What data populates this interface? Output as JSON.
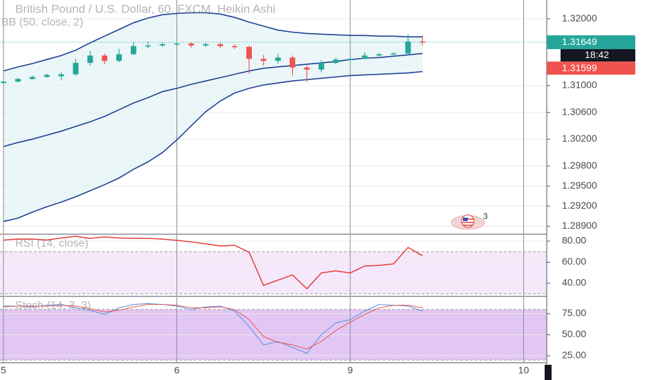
{
  "chart_data": [
    {
      "type": "candlestick",
      "title": "British Pound / U.S. Dollar, 60, FXCM, Heikin Ashi",
      "subtitle": "BB (50, close, 2)",
      "x": [
        0,
        2,
        4,
        6,
        8,
        10,
        12,
        14,
        16,
        18,
        20,
        22,
        24,
        26,
        28,
        30,
        32,
        34,
        36,
        38,
        40,
        42,
        44,
        46,
        48,
        50,
        52,
        54,
        56,
        58
      ],
      "open": [
        1.3104,
        1.3106,
        1.311,
        1.3113,
        1.3114,
        1.3117,
        1.3134,
        1.3145,
        1.3137,
        1.3147,
        1.3159,
        1.316,
        1.3162,
        1.3163,
        1.316,
        1.3162,
        1.3159,
        1.3158,
        1.314,
        1.3137,
        1.3142,
        1.3127,
        1.3124,
        1.3134,
        1.3139,
        1.314,
        1.3145,
        1.3147,
        1.3148,
        1.3166
      ],
      "high": [
        1.3108,
        1.3112,
        1.3115,
        1.3118,
        1.312,
        1.314,
        1.3152,
        1.3148,
        1.3155,
        1.3165,
        1.3166,
        1.3165,
        1.3165,
        1.3165,
        1.3164,
        1.3164,
        1.3162,
        1.316,
        1.3146,
        1.3148,
        1.3145,
        1.313,
        1.3138,
        1.3142,
        1.3142,
        1.315,
        1.3149,
        1.315,
        1.3177,
        1.3175
      ],
      "low": [
        1.3102,
        1.3105,
        1.3109,
        1.3112,
        1.3108,
        1.3115,
        1.313,
        1.3132,
        1.3135,
        1.3146,
        1.3156,
        1.3158,
        1.316,
        1.3157,
        1.3158,
        1.3156,
        1.3155,
        1.3118,
        1.313,
        1.3133,
        1.3115,
        1.3105,
        1.312,
        1.3132,
        1.3136,
        1.3139,
        1.3144,
        1.3146,
        1.3146,
        1.316
      ],
      "close": [
        1.3106,
        1.311,
        1.3113,
        1.3116,
        1.3117,
        1.3134,
        1.3145,
        1.3137,
        1.3147,
        1.3159,
        1.316,
        1.3162,
        1.3163,
        1.316,
        1.3162,
        1.3159,
        1.3158,
        1.314,
        1.3137,
        1.3142,
        1.3127,
        1.3124,
        1.3134,
        1.3139,
        1.314,
        1.3145,
        1.3147,
        1.3148,
        1.3166,
        1.3165
      ],
      "up_color": "#26a69a",
      "down_color": "#ef5350",
      "bands": {
        "color": "#1c3f95",
        "fill": "#eaf6f7",
        "upper": [
          1.3122,
          1.3128,
          1.3133,
          1.3139,
          1.3145,
          1.3153,
          1.3164,
          1.3174,
          1.3184,
          1.3194,
          1.3201,
          1.3206,
          1.3208,
          1.3209,
          1.3209,
          1.3207,
          1.3202,
          1.3195,
          1.3189,
          1.3183,
          1.318,
          1.3178,
          1.3177,
          1.3176,
          1.3175,
          1.3175,
          1.3174,
          1.3174,
          1.3173,
          1.3173
        ],
        "basis": [
          1.3009,
          1.3015,
          1.302,
          1.3026,
          1.3032,
          1.3039,
          1.3046,
          1.3054,
          1.3064,
          1.3074,
          1.3082,
          1.3091,
          1.3096,
          1.3102,
          1.3107,
          1.3112,
          1.3117,
          1.3122,
          1.3126,
          1.3128,
          1.313,
          1.3132,
          1.3134,
          1.3136,
          1.3139,
          1.3141,
          1.3142,
          1.3144,
          1.3146,
          1.3148
        ],
        "lower": [
          1.2897,
          1.2902,
          1.2911,
          1.2919,
          1.2926,
          1.2934,
          1.2943,
          1.2952,
          1.2962,
          1.2975,
          1.2986,
          1.3,
          1.3019,
          1.304,
          1.3061,
          1.3077,
          1.3089,
          1.3096,
          1.3101,
          1.3104,
          1.3107,
          1.3109,
          1.3111,
          1.3113,
          1.3115,
          1.3116,
          1.3117,
          1.3118,
          1.3119,
          1.3121
        ]
      },
      "xlim": [
        -0.48,
        75.2
      ],
      "xticks": [
        {
          "value": 0,
          "label": "5"
        },
        {
          "value": 24,
          "label": "6"
        },
        {
          "value": 48,
          "label": "9"
        },
        {
          "value": 72,
          "label": "10"
        }
      ],
      "ylim": [
        1.2879,
        1.3228
      ],
      "yticks": [
        {
          "value": 1.32,
          "label": "1.32000"
        },
        {
          "value": 1.31,
          "label": "1.31000"
        },
        {
          "value": 1.306,
          "label": "1.30600"
        },
        {
          "value": 1.302,
          "label": "1.30200"
        },
        {
          "value": 1.298,
          "label": "1.29800"
        },
        {
          "value": 1.295,
          "label": "1.29500"
        },
        {
          "value": 1.292,
          "label": "1.29200"
        },
        {
          "value": 1.289,
          "label": "1.28900"
        }
      ],
      "grid": true,
      "last_price": {
        "value": 1.31649,
        "label": "1.31649",
        "color": "#26a69a"
      },
      "countdown": "18:42",
      "bid_price": {
        "value": 1.31599,
        "label": "1.31599",
        "color": "#ef5350"
      },
      "events_count": 3
    },
    {
      "type": "line",
      "title": "RSI (14, close)",
      "x": [
        0,
        2,
        4,
        6,
        8,
        10,
        12,
        14,
        16,
        18,
        20,
        22,
        24,
        26,
        28,
        30,
        32,
        34,
        36,
        38,
        40,
        42,
        44,
        46,
        48,
        50,
        52,
        54,
        56,
        58
      ],
      "series": [
        {
          "color": "#e53935",
          "values": [
            81,
            82,
            82,
            81,
            83,
            84.6,
            82.6,
            84,
            83,
            82.6,
            82.6,
            82,
            80.7,
            79.3,
            77.4,
            75.4,
            76,
            69.5,
            38,
            43,
            47.9,
            34.8,
            49.8,
            51.8,
            49.8,
            56.4,
            57,
            58.4,
            74,
            66.2
          ]
        }
      ],
      "band": [
        30,
        70
      ],
      "band_color": "#f5e8fb",
      "xlim": [
        -0.48,
        75.2
      ],
      "ylim": [
        28.2,
        85.9
      ],
      "yticks": [
        {
          "value": 80,
          "label": "80.00"
        },
        {
          "value": 60,
          "label": "60.00"
        },
        {
          "value": 40,
          "label": "40.00"
        }
      ],
      "grid": true
    },
    {
      "type": "line",
      "title": "Stoch (14, 3, 3)",
      "x": [
        0,
        2,
        4,
        6,
        8,
        10,
        12,
        14,
        16,
        18,
        20,
        22,
        24,
        26,
        28,
        30,
        32,
        34,
        36,
        38,
        40,
        42,
        44,
        46,
        48,
        50,
        52,
        54,
        56,
        58
      ],
      "series": [
        {
          "color": "#4a90e2",
          "values": [
            84,
            84,
            83,
            85,
            86,
            82,
            79,
            74,
            82,
            86,
            87,
            86,
            84,
            80,
            83,
            84,
            78,
            60,
            38,
            42,
            35,
            28,
            50,
            64,
            68,
            78,
            86,
            85,
            84,
            78
          ]
        },
        {
          "color": "#ef5350",
          "values": [
            83,
            84,
            84,
            84,
            85,
            84,
            81,
            77,
            79,
            83,
            86,
            86,
            85,
            82,
            82,
            83,
            80,
            68,
            48,
            41,
            38,
            33,
            42,
            55,
            65,
            74,
            82,
            85,
            85,
            82
          ]
        }
      ],
      "band": [
        20,
        80
      ],
      "band_color": "#e2c6f4",
      "xlim": [
        -0.48,
        75.2
      ],
      "ylim": [
        16.8,
        94.7
      ],
      "yticks": [
        {
          "value": 75,
          "label": "75.00"
        },
        {
          "value": 50,
          "label": "50.00"
        },
        {
          "value": 25,
          "label": "25.00"
        }
      ],
      "grid": true
    }
  ]
}
